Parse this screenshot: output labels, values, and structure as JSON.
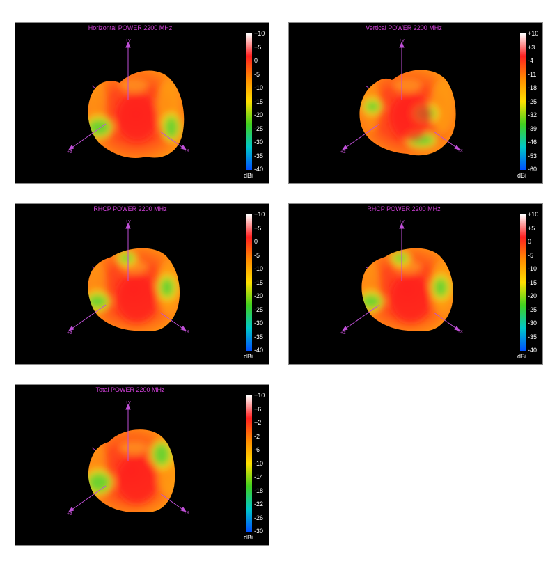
{
  "axes": {
    "y": "+y",
    "z": "+z",
    "x": "+x"
  },
  "unit": "dBi",
  "colorbar_colors": [
    "#ffffff",
    "#ff2020",
    "#ff8c00",
    "#ffe000",
    "#40d020",
    "#00c8c8",
    "#0050ff"
  ],
  "panels": [
    {
      "title": "Horizontal POWER 2200  MHz",
      "scale": [
        "+10",
        "+5",
        "0",
        "-5",
        "-10",
        "-15",
        "-20",
        "-25",
        "-30",
        "-35",
        "-40"
      ]
    },
    {
      "title": "Vertical POWER 2200  MHz",
      "scale": [
        "+10",
        "+3",
        "-4",
        "-11",
        "-18",
        "-25",
        "-32",
        "-39",
        "-46",
        "-53",
        "-60"
      ]
    },
    {
      "title": "RHCP POWER 2200  MHz",
      "scale": [
        "+10",
        "+5",
        "0",
        "-5",
        "-10",
        "-15",
        "-20",
        "-25",
        "-30",
        "-35",
        "-40"
      ]
    },
    {
      "title": "RHCP POWER 2200  MHz",
      "scale": [
        "+10",
        "+5",
        "0",
        "-5",
        "-10",
        "-15",
        "-20",
        "-25",
        "-30",
        "-35",
        "-40"
      ]
    },
    {
      "title": "Total POWER 2200  MHz",
      "scale": [
        "+10",
        "+6",
        "+2",
        "-2",
        "-6",
        "-10",
        "-14",
        "-18",
        "-22",
        "-26",
        "-30"
      ]
    }
  ]
}
